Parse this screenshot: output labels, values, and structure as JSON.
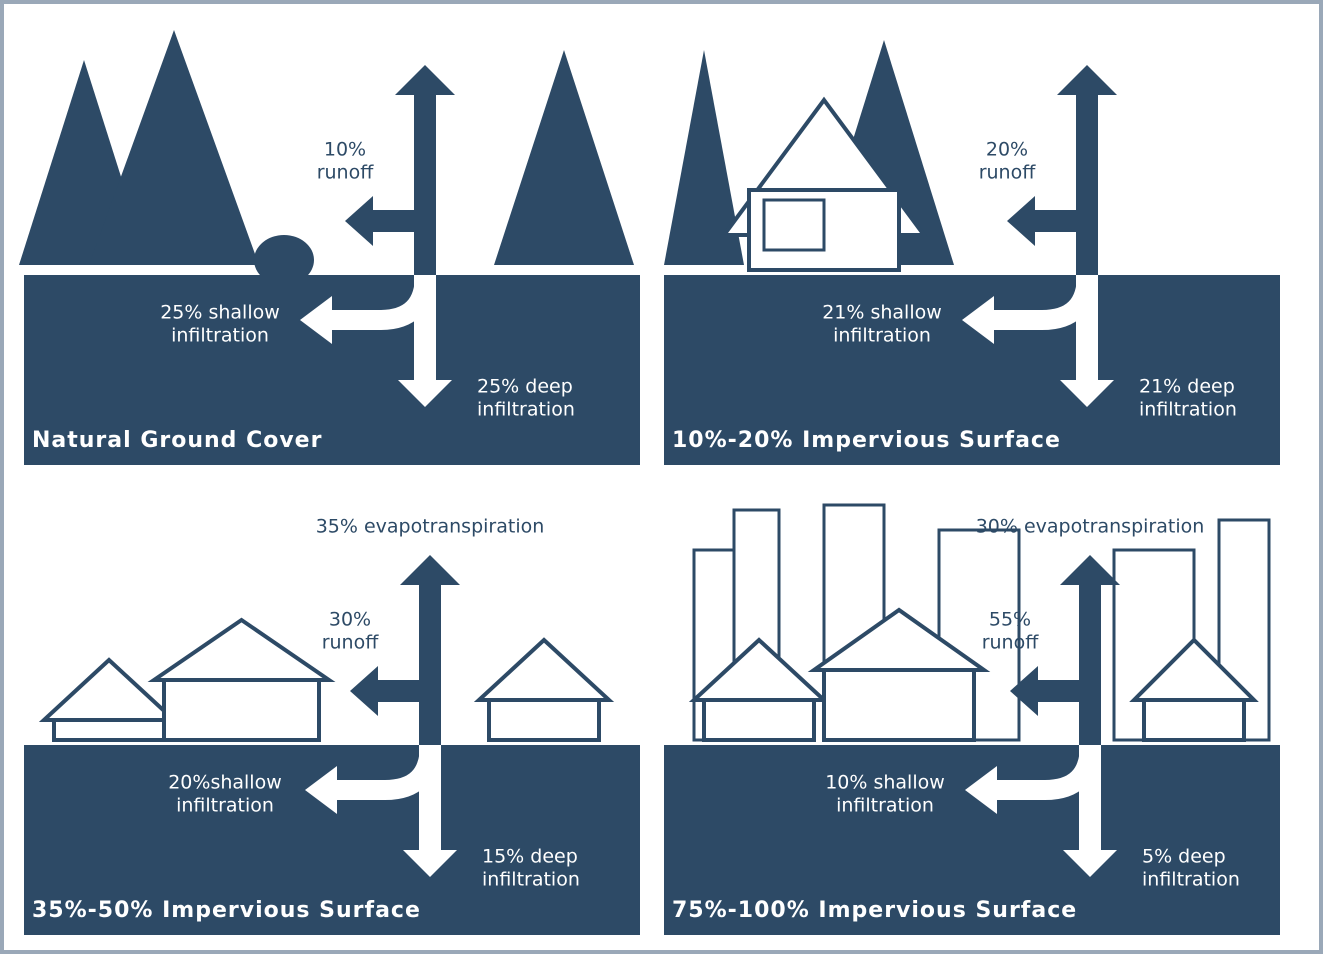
{
  "panels": [
    {
      "title": "Natural Ground Cover",
      "runoff": [
        "10%",
        "runoff"
      ],
      "shallow": [
        "25% shallow",
        "infiltration"
      ],
      "deep": [
        "25% deep",
        "infiltration"
      ]
    },
    {
      "title": "10%-20% Impervious Surface",
      "runoff": [
        "20%",
        "runoff"
      ],
      "shallow": [
        "21% shallow",
        "infiltration"
      ],
      "deep": [
        "21% deep",
        "infiltration"
      ]
    },
    {
      "title": "35%-50% Impervious Surface",
      "evapotranspiration": "35% evapotranspiration",
      "runoff": [
        "30%",
        "runoff"
      ],
      "shallow": [
        "20%shallow",
        "infiltration"
      ],
      "deep": [
        "15% deep",
        "infiltration"
      ]
    },
    {
      "title": "75%-100% Impervious Surface",
      "evapotranspiration": "30% evapotranspiration",
      "runoff": [
        "55%",
        "runoff"
      ],
      "shallow": [
        "10% shallow",
        "infiltration"
      ],
      "deep": [
        "5% deep",
        "infiltration"
      ]
    }
  ]
}
